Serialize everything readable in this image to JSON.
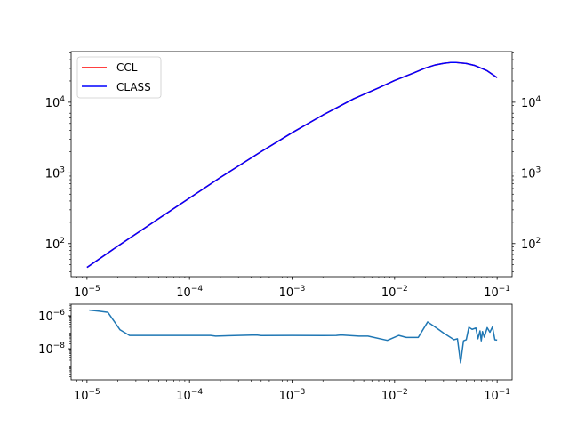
{
  "chart_data": [
    {
      "type": "line",
      "x_scale": "log",
      "y_scale": "log",
      "xlim": [
        7e-06,
        0.14
      ],
      "ylim": [
        34,
        52000
      ],
      "x_ticks": [
        {
          "base": "10",
          "exp": "−5",
          "value": 1e-05
        },
        {
          "base": "10",
          "exp": "−4",
          "value": 0.0001
        },
        {
          "base": "10",
          "exp": "−3",
          "value": 0.001
        },
        {
          "base": "10",
          "exp": "−2",
          "value": 0.01
        },
        {
          "base": "10",
          "exp": "−1",
          "value": 0.1
        }
      ],
      "y_ticks": [
        {
          "base": "10",
          "exp": "2",
          "value": 100
        },
        {
          "base": "10",
          "exp": "3",
          "value": 1000
        },
        {
          "base": "10",
          "exp": "4",
          "value": 10000
        }
      ],
      "right_y_ticks": true,
      "legend": {
        "placement": "upper-left"
      },
      "series": [
        {
          "name": "CCL",
          "color": "#ff0000",
          "x": [
            1e-05,
            2e-05,
            5e-05,
            0.0001,
            0.0002,
            0.0005,
            0.001,
            0.002,
            0.004,
            0.007,
            0.01,
            0.015,
            0.02,
            0.025,
            0.03,
            0.035,
            0.04,
            0.05,
            0.06,
            0.07,
            0.08,
            0.1
          ],
          "y": [
            46,
            92,
            225,
            440,
            860,
            2000,
            3700,
            6600,
            11200,
            16000,
            20300,
            25600,
            30500,
            33700,
            35400,
            36400,
            36400,
            35300,
            33200,
            30300,
            27800,
            22300
          ]
        },
        {
          "name": "CLASS",
          "color": "#0000ff",
          "x": [
            1e-05,
            2e-05,
            5e-05,
            0.0001,
            0.0002,
            0.0005,
            0.001,
            0.002,
            0.004,
            0.007,
            0.01,
            0.015,
            0.02,
            0.025,
            0.03,
            0.035,
            0.04,
            0.05,
            0.06,
            0.07,
            0.08,
            0.1
          ],
          "y": [
            46,
            92,
            225,
            440,
            860,
            2000,
            3700,
            6600,
            11200,
            16000,
            20300,
            25600,
            30500,
            33700,
            35400,
            36400,
            36400,
            35300,
            33200,
            30300,
            27800,
            22300
          ]
        }
      ]
    },
    {
      "type": "line",
      "x_scale": "log",
      "y_scale": "log",
      "xlim": [
        7e-06,
        0.14
      ],
      "ylim": [
        1.3e-10,
        5e-06
      ],
      "x_ticks": [
        {
          "base": "10",
          "exp": "−5",
          "value": 1e-05
        },
        {
          "base": "10",
          "exp": "−4",
          "value": 0.0001
        },
        {
          "base": "10",
          "exp": "−3",
          "value": 0.001
        },
        {
          "base": "10",
          "exp": "−2",
          "value": 0.01
        },
        {
          "base": "10",
          "exp": "−1",
          "value": 0.1
        }
      ],
      "y_ticks": [
        {
          "base": "10",
          "exp": "−6",
          "value": 1e-06
        },
        {
          "base": "10",
          "exp": "−8",
          "value": 1e-08
        }
      ],
      "series": [
        {
          "color": "#1f77b4",
          "x": [
            1.05e-05,
            1.3e-05,
            1.6e-05,
            2.1e-05,
            2.6e-05,
            4e-05,
            0.0001,
            0.00016,
            0.00018,
            0.0003,
            0.00045,
            0.0005,
            0.001,
            0.002,
            0.0027,
            0.003,
            0.0045,
            0.0055,
            0.0085,
            0.011,
            0.013,
            0.017,
            0.021,
            0.025,
            0.03,
            0.038,
            0.041,
            0.044,
            0.047,
            0.05,
            0.053,
            0.057,
            0.062,
            0.065,
            0.068,
            0.07,
            0.072,
            0.075,
            0.08,
            0.085,
            0.09,
            0.095,
            0.1
          ],
          "y": [
            2.2e-06,
            1.9e-06,
            1.6e-06,
            1.4e-07,
            6.4e-08,
            6.4e-08,
            6.4e-08,
            6.4e-08,
            5.8e-08,
            6.4e-08,
            6.8e-08,
            6.3e-08,
            6.4e-08,
            6.3e-08,
            6.4e-08,
            6.8e-08,
            5.8e-08,
            5.8e-08,
            3.2e-08,
            6.4e-08,
            4.8e-08,
            4.8e-08,
            4.2e-07,
            2e-07,
            9e-08,
            3.5e-08,
            4e-08,
            1.4e-09,
            3e-08,
            3.5e-08,
            2e-07,
            1.5e-07,
            1.8e-07,
            4e-08,
            1.2e-07,
            3e-08,
            1.1e-07,
            5e-08,
            1.9e-07,
            1e-07,
            2.1e-07,
            3.5e-08,
            3.3e-08
          ]
        }
      ]
    }
  ]
}
